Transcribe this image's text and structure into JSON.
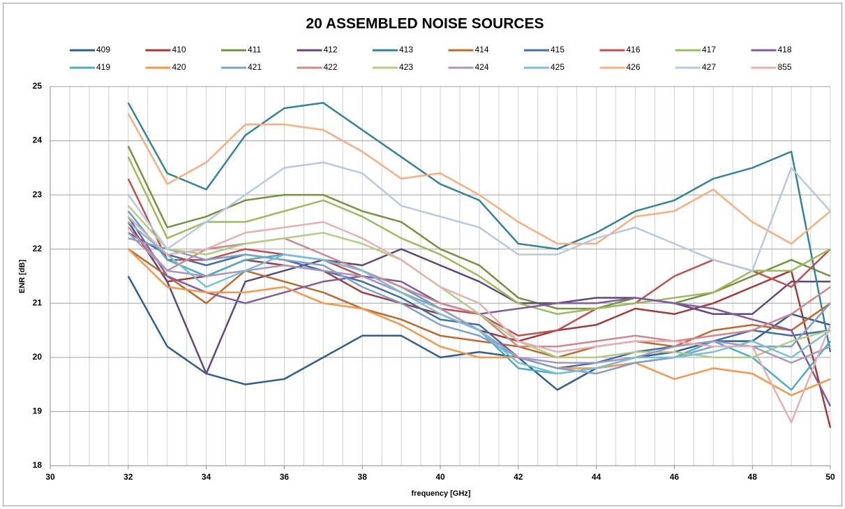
{
  "chart_data": {
    "type": "line",
    "title": "20 ASSEMBLED NOISE SOURCES",
    "xlabel": "frequency [GHz]",
    "ylabel": "ENR [dB]",
    "x": [
      32,
      33,
      34,
      35,
      36,
      37,
      38,
      39,
      40,
      41,
      42,
      43,
      44,
      45,
      46,
      47,
      48,
      49,
      50
    ],
    "xlim": [
      30,
      50
    ],
    "xticks": [
      30,
      32,
      34,
      36,
      38,
      40,
      42,
      44,
      46,
      48,
      50
    ],
    "xgrid": [
      30,
      30.5,
      31,
      31.5,
      32,
      32.5,
      33,
      33.5,
      34,
      34.5,
      35,
      35.5,
      36,
      36.5,
      37,
      37.5,
      38,
      38.5,
      39,
      39.5,
      40,
      40.5,
      41,
      41.5,
      42,
      42.5,
      43,
      43.5,
      44,
      44.5,
      45,
      45.5,
      46,
      46.5,
      47,
      47.5,
      48,
      48.5,
      49,
      49.5,
      50
    ],
    "ylim": [
      18,
      25
    ],
    "yticks": [
      18,
      19,
      20,
      21,
      22,
      23,
      24,
      25
    ],
    "grid": true,
    "legend": "top",
    "series": [
      {
        "name": "409",
        "color": "#2f5f8f",
        "values": [
          21.5,
          20.2,
          19.7,
          19.5,
          19.6,
          20.0,
          20.4,
          20.4,
          20.0,
          20.1,
          20.0,
          19.4,
          19.8,
          20.0,
          20.1,
          20.3,
          20.3,
          20.8,
          20.6
        ]
      },
      {
        "name": "410",
        "color": "#a33a36",
        "values": [
          22.5,
          21.4,
          21.5,
          21.8,
          21.7,
          21.6,
          21.2,
          21.0,
          20.8,
          20.5,
          20.3,
          20.5,
          20.6,
          20.9,
          20.8,
          21.0,
          21.3,
          21.6,
          18.7
        ]
      },
      {
        "name": "411",
        "color": "#76923c",
        "values": [
          23.9,
          22.4,
          22.6,
          22.9,
          23.0,
          23.0,
          22.7,
          22.5,
          22.0,
          21.7,
          21.1,
          20.9,
          20.9,
          21.1,
          21.0,
          21.2,
          21.5,
          21.8,
          21.5
        ]
      },
      {
        "name": "412",
        "color": "#5f497a",
        "values": [
          22.5,
          21.4,
          19.7,
          21.4,
          21.6,
          21.8,
          21.7,
          22.0,
          21.7,
          21.4,
          21.0,
          21.0,
          21.1,
          21.1,
          21.0,
          20.8,
          20.8,
          21.4,
          21.4
        ]
      },
      {
        "name": "413",
        "color": "#31849b",
        "values": [
          24.7,
          23.4,
          23.1,
          24.1,
          24.6,
          24.7,
          24.2,
          23.7,
          23.2,
          22.9,
          22.1,
          22.0,
          22.3,
          22.7,
          22.9,
          23.3,
          23.5,
          23.8,
          20.1
        ]
      },
      {
        "name": "414",
        "color": "#c0692a",
        "values": [
          22.0,
          21.5,
          21.0,
          21.6,
          21.4,
          21.2,
          20.9,
          20.7,
          20.4,
          20.3,
          20.2,
          20.0,
          20.2,
          20.3,
          20.2,
          20.5,
          20.6,
          20.5,
          21.0
        ]
      },
      {
        "name": "415",
        "color": "#3f6fa8",
        "values": [
          22.3,
          21.9,
          21.7,
          21.9,
          21.8,
          21.6,
          21.4,
          21.1,
          20.7,
          20.6,
          20.0,
          19.8,
          19.9,
          20.1,
          20.2,
          20.3,
          20.5,
          20.4,
          20.5
        ]
      },
      {
        "name": "416",
        "color": "#c0504d",
        "values": [
          23.3,
          21.8,
          21.8,
          22.0,
          21.9,
          21.8,
          21.5,
          21.2,
          20.9,
          20.8,
          20.4,
          20.5,
          20.9,
          21.0,
          21.5,
          21.8,
          21.6,
          21.3,
          22.0
        ]
      },
      {
        "name": "417",
        "color": "#9bbb59",
        "values": [
          23.7,
          22.2,
          22.5,
          22.5,
          22.7,
          22.9,
          22.6,
          22.2,
          21.9,
          21.5,
          21.0,
          20.8,
          20.9,
          21.0,
          21.1,
          21.2,
          21.6,
          21.6,
          22.0
        ]
      },
      {
        "name": "418",
        "color": "#7f5ba0",
        "values": [
          22.6,
          21.5,
          21.2,
          21.0,
          21.2,
          21.4,
          21.5,
          21.4,
          21.0,
          20.8,
          20.9,
          21.0,
          21.0,
          21.1,
          21.0,
          20.9,
          20.7,
          20.5,
          19.1
        ]
      },
      {
        "name": "419",
        "color": "#4bacc6",
        "values": [
          22.7,
          21.8,
          21.5,
          21.8,
          21.9,
          21.8,
          21.6,
          21.3,
          20.9,
          20.5,
          19.8,
          19.7,
          19.8,
          19.9,
          20.0,
          20.3,
          20.0,
          19.4,
          20.3
        ]
      },
      {
        "name": "420",
        "color": "#f79646",
        "values": [
          22.0,
          21.3,
          21.2,
          21.2,
          21.3,
          21.0,
          20.9,
          20.6,
          20.2,
          20.0,
          20.0,
          19.8,
          19.8,
          19.9,
          19.6,
          19.8,
          19.7,
          19.3,
          19.6
        ]
      },
      {
        "name": "421",
        "color": "#7f9fcf",
        "values": [
          22.2,
          22.0,
          21.8,
          21.9,
          21.8,
          21.7,
          21.3,
          21.0,
          20.6,
          20.4,
          20.0,
          19.8,
          19.7,
          19.9,
          20.0,
          20.2,
          20.2,
          20.2,
          21.0
        ]
      },
      {
        "name": "422",
        "color": "#d0868a",
        "values": [
          22.4,
          21.6,
          22.0,
          22.1,
          22.2,
          21.9,
          21.6,
          21.3,
          21.0,
          20.8,
          20.2,
          20.2,
          20.3,
          20.4,
          20.3,
          20.4,
          20.5,
          20.8,
          21.3
        ]
      },
      {
        "name": "423",
        "color": "#b3cc82",
        "values": [
          22.8,
          22.0,
          21.9,
          22.1,
          22.2,
          22.3,
          22.1,
          21.8,
          21.3,
          20.8,
          20.3,
          20.0,
          20.0,
          20.1,
          20.1,
          20.0,
          20.0,
          20.3,
          20.5
        ]
      },
      {
        "name": "424",
        "color": "#a797c1",
        "values": [
          22.3,
          21.6,
          21.5,
          21.6,
          21.7,
          21.6,
          21.5,
          21.2,
          20.9,
          20.5,
          20.0,
          19.9,
          19.9,
          20.0,
          20.2,
          20.3,
          20.2,
          19.9,
          20.2
        ]
      },
      {
        "name": "425",
        "color": "#76c0d8",
        "values": [
          22.5,
          21.9,
          21.3,
          21.6,
          21.9,
          21.8,
          21.6,
          21.2,
          20.8,
          20.5,
          19.9,
          19.7,
          19.8,
          20.0,
          20.0,
          20.1,
          20.3,
          20.0,
          20.5
        ]
      },
      {
        "name": "426",
        "color": "#f8ae7d",
        "values": [
          24.5,
          23.2,
          23.6,
          24.3,
          24.3,
          24.2,
          23.8,
          23.3,
          23.4,
          23.0,
          22.5,
          22.1,
          22.1,
          22.6,
          22.7,
          23.1,
          22.5,
          22.1,
          22.7
        ]
      },
      {
        "name": "427",
        "color": "#b8c8e0",
        "values": [
          23.0,
          22.0,
          22.5,
          23.0,
          23.5,
          23.6,
          23.4,
          22.8,
          22.6,
          22.4,
          21.9,
          21.9,
          22.2,
          22.4,
          22.1,
          21.8,
          21.6,
          23.5,
          22.7
        ]
      },
      {
        "name": "855",
        "color": "#e6b0b0",
        "values": [
          22.6,
          21.9,
          22.0,
          22.3,
          22.4,
          22.5,
          22.2,
          21.8,
          21.3,
          21.0,
          20.3,
          20.1,
          20.2,
          20.3,
          20.3,
          20.2,
          20.2,
          18.8,
          20.6
        ]
      }
    ]
  }
}
